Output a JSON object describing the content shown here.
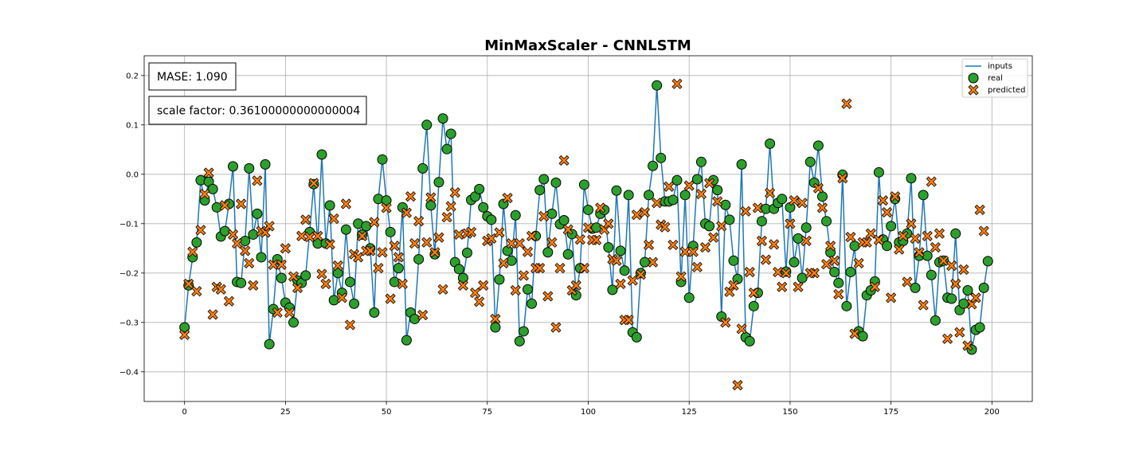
{
  "chart_data": {
    "type": "scatter",
    "title": "MinMaxScaler - CNNLSTM",
    "xlabel": "",
    "ylabel": "",
    "xlim": [
      -10,
      210
    ],
    "ylim": [
      -0.46,
      0.24
    ],
    "xticks": [
      0,
      25,
      50,
      75,
      100,
      125,
      150,
      175,
      200
    ],
    "yticks": [
      -0.4,
      -0.3,
      -0.2,
      -0.1,
      0.0,
      0.1,
      0.2
    ],
    "ytick_labels": [
      "−0.4",
      "−0.3",
      "−0.2",
      "−0.1",
      "0.0",
      "0.1",
      "0.2"
    ],
    "grid": true,
    "legend_position": "top-right",
    "annotations": [
      "MASE: 1.090",
      "scale factor: 0.36100000000000004"
    ],
    "colors": {
      "inputs": "#1f77b4",
      "real": "#2ca02c",
      "predicted": "#ff7f0e"
    },
    "series": [
      {
        "name": "inputs",
        "marker": "line",
        "values": [
          -0.31,
          -0.225,
          -0.168,
          -0.138,
          -0.012,
          -0.053,
          -0.015,
          -0.03,
          -0.067,
          -0.126,
          -0.115,
          -0.06,
          0.016,
          -0.218,
          -0.22,
          -0.135,
          0.012,
          -0.122,
          -0.08,
          -0.168,
          0.02,
          -0.344,
          -0.273,
          -0.172,
          -0.21,
          -0.26,
          -0.27,
          -0.3,
          -0.215,
          -0.22,
          -0.205,
          -0.117,
          -0.02,
          -0.14,
          0.04,
          -0.14,
          -0.063,
          -0.255,
          -0.2,
          -0.24,
          -0.112,
          -0.218,
          -0.262,
          -0.1,
          -0.122,
          -0.105,
          -0.15,
          -0.28,
          -0.05,
          0.03,
          -0.053,
          -0.117,
          -0.218,
          -0.19,
          -0.067,
          -0.336,
          -0.28,
          -0.293,
          -0.172,
          0.012,
          0.1,
          -0.063,
          -0.162,
          -0.016,
          0.113,
          0.051,
          0.082,
          -0.178,
          -0.192,
          -0.21,
          -0.159,
          -0.052,
          -0.045,
          -0.03,
          -0.067,
          -0.085,
          -0.092,
          -0.31,
          -0.213,
          -0.06,
          -0.155,
          -0.175,
          -0.083,
          -0.338,
          -0.318,
          -0.233,
          -0.262,
          -0.125,
          -0.032,
          -0.01,
          -0.158,
          -0.08,
          -0.017,
          -0.101,
          -0.093,
          -0.162,
          -0.121,
          -0.245,
          -0.19,
          -0.021,
          -0.072,
          -0.11,
          -0.108,
          -0.08,
          -0.072,
          -0.148,
          -0.234,
          -0.033,
          -0.155,
          -0.195,
          -0.042,
          -0.32,
          -0.33,
          -0.2,
          -0.178,
          -0.042,
          0.017,
          0.18,
          0.033,
          -0.055,
          -0.055,
          -0.052,
          -0.012,
          -0.218,
          -0.042,
          -0.25,
          -0.145,
          -0.01,
          0.025,
          -0.1,
          -0.105,
          -0.012,
          -0.032,
          -0.288,
          -0.062,
          -0.092,
          -0.175,
          -0.212,
          0.02,
          -0.33,
          -0.338,
          -0.267,
          -0.24,
          -0.095,
          -0.07,
          0.062,
          -0.07,
          -0.058,
          -0.05,
          -0.197,
          -0.067,
          -0.178,
          -0.13,
          -0.21,
          -0.108,
          0.025,
          -0.017,
          0.058,
          -0.045,
          -0.095,
          -0.158,
          -0.198,
          -0.22,
          -0.001,
          -0.267,
          -0.198,
          -0.145,
          -0.318,
          -0.328,
          -0.245,
          -0.235,
          -0.217,
          0.004,
          -0.132,
          -0.145,
          -0.105,
          -0.05,
          -0.138,
          -0.135,
          -0.12,
          -0.008,
          -0.23,
          -0.165,
          -0.042,
          -0.165,
          -0.204,
          -0.296,
          -0.178,
          -0.175,
          -0.25,
          -0.252,
          -0.12,
          -0.275,
          -0.262,
          -0.235,
          -0.355,
          -0.315,
          -0.31,
          -0.23,
          -0.176
        ]
      },
      {
        "name": "real",
        "marker": "circle",
        "values": [
          -0.31,
          -0.225,
          -0.168,
          -0.138,
          -0.012,
          -0.053,
          -0.015,
          -0.03,
          -0.067,
          -0.126,
          -0.115,
          -0.06,
          0.016,
          -0.218,
          -0.22,
          -0.135,
          0.012,
          -0.122,
          -0.08,
          -0.168,
          0.02,
          -0.344,
          -0.273,
          -0.172,
          -0.21,
          -0.26,
          -0.27,
          -0.3,
          -0.215,
          -0.22,
          -0.205,
          -0.117,
          -0.02,
          -0.14,
          0.04,
          -0.14,
          -0.063,
          -0.255,
          -0.2,
          -0.24,
          -0.112,
          -0.218,
          -0.262,
          -0.1,
          -0.122,
          -0.105,
          -0.15,
          -0.28,
          -0.05,
          0.03,
          -0.053,
          -0.117,
          -0.218,
          -0.19,
          -0.067,
          -0.336,
          -0.28,
          -0.293,
          -0.172,
          0.012,
          0.1,
          -0.063,
          -0.162,
          -0.016,
          0.113,
          0.051,
          0.082,
          -0.178,
          -0.192,
          -0.21,
          -0.159,
          -0.052,
          -0.045,
          -0.03,
          -0.067,
          -0.085,
          -0.092,
          -0.31,
          -0.213,
          -0.06,
          -0.155,
          -0.175,
          -0.083,
          -0.338,
          -0.318,
          -0.233,
          -0.262,
          -0.125,
          -0.032,
          -0.01,
          -0.158,
          -0.08,
          -0.017,
          -0.101,
          -0.093,
          -0.162,
          -0.121,
          -0.245,
          -0.19,
          -0.021,
          -0.072,
          -0.11,
          -0.108,
          -0.08,
          -0.072,
          -0.148,
          -0.234,
          -0.033,
          -0.155,
          -0.195,
          -0.042,
          -0.32,
          -0.33,
          -0.2,
          -0.178,
          -0.042,
          0.017,
          0.18,
          0.033,
          -0.055,
          -0.055,
          -0.052,
          -0.012,
          -0.218,
          -0.042,
          -0.25,
          -0.145,
          -0.01,
          0.025,
          -0.1,
          -0.105,
          -0.012,
          -0.032,
          -0.288,
          -0.062,
          -0.092,
          -0.175,
          -0.212,
          0.02,
          -0.33,
          -0.338,
          -0.267,
          -0.24,
          -0.095,
          -0.07,
          0.062,
          -0.07,
          -0.058,
          -0.05,
          -0.197,
          -0.067,
          -0.178,
          -0.13,
          -0.21,
          -0.108,
          0.025,
          -0.017,
          0.058,
          -0.045,
          -0.095,
          -0.158,
          -0.198,
          -0.22,
          -0.001,
          -0.267,
          -0.198,
          -0.145,
          -0.318,
          -0.328,
          -0.245,
          -0.235,
          -0.217,
          0.004,
          -0.132,
          -0.145,
          -0.105,
          -0.05,
          -0.138,
          -0.135,
          -0.12,
          -0.008,
          -0.23,
          -0.165,
          -0.042,
          -0.165,
          -0.204,
          -0.296,
          -0.178,
          -0.175,
          -0.25,
          -0.252,
          -0.12,
          -0.275,
          -0.262,
          -0.235,
          -0.355,
          -0.315,
          -0.31,
          -0.23,
          -0.176
        ]
      },
      {
        "name": "predicted",
        "marker": "x",
        "values": [
          -0.325,
          -0.222,
          -0.157,
          -0.237,
          -0.113,
          -0.04,
          0.003,
          -0.284,
          -0.228,
          -0.233,
          -0.063,
          -0.257,
          -0.122,
          -0.14,
          -0.06,
          -0.155,
          -0.18,
          -0.225,
          -0.013,
          -0.115,
          -0.118,
          -0.105,
          -0.183,
          -0.28,
          -0.183,
          -0.15,
          -0.28,
          -0.207,
          -0.23,
          -0.125,
          -0.092,
          -0.127,
          -0.018,
          -0.125,
          -0.202,
          -0.222,
          -0.142,
          -0.09,
          -0.185,
          -0.25,
          -0.06,
          -0.305,
          -0.162,
          -0.168,
          -0.125,
          -0.155,
          -0.155,
          -0.097,
          -0.19,
          -0.158,
          -0.068,
          -0.252,
          -0.145,
          -0.168,
          -0.222,
          -0.078,
          -0.045,
          -0.14,
          -0.095,
          -0.285,
          -0.138,
          -0.047,
          -0.158,
          -0.128,
          -0.233,
          -0.087,
          -0.065,
          -0.037,
          -0.122,
          -0.225,
          -0.12,
          -0.117,
          -0.24,
          -0.258,
          -0.225,
          -0.135,
          -0.13,
          -0.293,
          -0.118,
          -0.18,
          -0.048,
          -0.14,
          -0.235,
          -0.14,
          -0.205,
          -0.157,
          -0.125,
          -0.19,
          -0.19,
          -0.085,
          -0.247,
          -0.138,
          -0.31,
          -0.19,
          0.028,
          -0.112,
          -0.235,
          -0.225,
          -0.132,
          -0.19,
          -0.108,
          -0.133,
          -0.133,
          -0.068,
          -0.112,
          -0.1,
          -0.172,
          -0.175,
          -0.222,
          -0.295,
          -0.295,
          -0.215,
          -0.082,
          -0.203,
          -0.077,
          -0.143,
          -0.178,
          -0.058,
          -0.102,
          -0.107,
          -0.025,
          -0.143,
          0.183,
          -0.207,
          -0.157,
          -0.023,
          -0.157,
          -0.188,
          -0.04,
          -0.148,
          -0.018,
          -0.128,
          -0.055,
          -0.105,
          -0.3,
          -0.238,
          -0.225,
          -0.427,
          -0.313,
          -0.075,
          -0.198,
          -0.24,
          -0.068,
          -0.135,
          -0.173,
          -0.038,
          -0.142,
          -0.198,
          -0.228,
          -0.2,
          -0.1,
          -0.053,
          -0.228,
          -0.058,
          -0.135,
          -0.2,
          -0.2,
          -0.028,
          -0.068,
          -0.182,
          -0.145,
          -0.175,
          -0.243,
          -0.008,
          0.143,
          -0.127,
          -0.323,
          -0.18,
          -0.138,
          -0.138,
          -0.12,
          -0.228,
          -0.133,
          -0.053,
          -0.077,
          -0.25,
          -0.045,
          -0.152,
          -0.125,
          -0.218,
          -0.1,
          -0.13,
          -0.158,
          -0.265,
          -0.125,
          -0.015,
          -0.148,
          -0.12,
          -0.175,
          -0.333,
          -0.185,
          -0.222,
          -0.32,
          -0.193,
          -0.347,
          -0.263,
          -0.25,
          -0.072,
          -0.115
        ]
      }
    ]
  }
}
